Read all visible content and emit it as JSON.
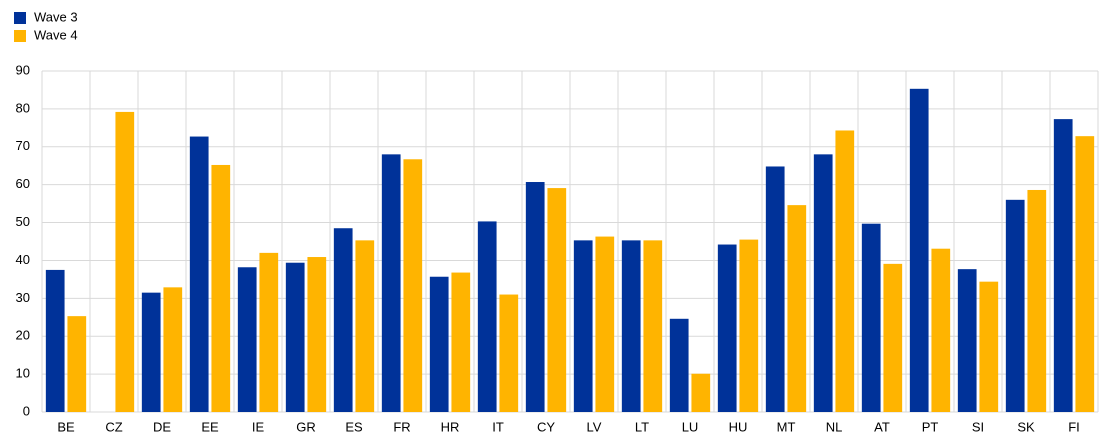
{
  "chart_data": {
    "type": "bar",
    "categories": [
      "BE",
      "CZ",
      "DE",
      "EE",
      "IE",
      "GR",
      "ES",
      "FR",
      "HR",
      "IT",
      "CY",
      "LV",
      "LT",
      "LU",
      "HU",
      "MT",
      "NL",
      "AT",
      "PT",
      "SI",
      "SK",
      "FI"
    ],
    "series": [
      {
        "name": "Wave 3",
        "color": "#003299",
        "values": [
          37.5,
          null,
          31.5,
          72.7,
          38.2,
          39.4,
          48.5,
          68,
          35.7,
          50.3,
          60.7,
          45.3,
          45.3,
          24.6,
          44.2,
          64.8,
          68,
          49.7,
          85.3,
          37.7,
          56,
          77.3
        ]
      },
      {
        "name": "Wave 4",
        "color": "#ffb400",
        "values": [
          25.3,
          79.2,
          32.9,
          65.2,
          42,
          40.9,
          45.3,
          66.7,
          36.8,
          31,
          59.1,
          46.3,
          45.3,
          10.1,
          45.5,
          54.6,
          74.3,
          39.1,
          43.1,
          34.4,
          58.6,
          72.8
        ]
      }
    ],
    "ylim": [
      0,
      90
    ],
    "yticks": [
      0,
      10,
      20,
      30,
      40,
      50,
      60,
      70,
      80,
      90
    ],
    "grid": true,
    "legend": "top-left"
  }
}
